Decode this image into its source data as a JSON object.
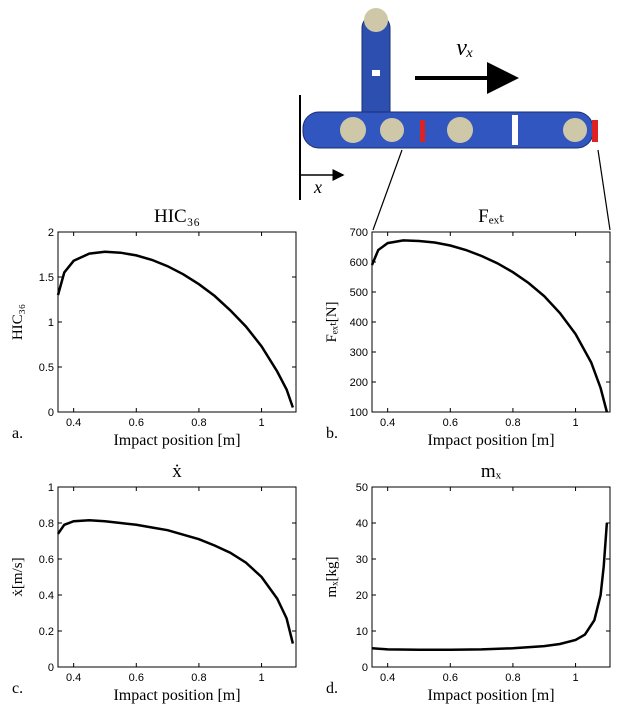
{
  "illustration": {
    "velocity_label": "vₓ",
    "axis_label": "x"
  },
  "chart_data": [
    {
      "type": "line",
      "panel_label": "a.",
      "title": "HIC₃₆",
      "x_label": "Impact position [m]",
      "y_label": "HIC₃₆",
      "color": "#000000",
      "x": [
        0.35,
        0.37,
        0.4,
        0.45,
        0.5,
        0.55,
        0.6,
        0.65,
        0.7,
        0.75,
        0.8,
        0.85,
        0.9,
        0.95,
        1.0,
        1.05,
        1.08,
        1.1
      ],
      "values": [
        1.3,
        1.55,
        1.68,
        1.76,
        1.78,
        1.77,
        1.74,
        1.69,
        1.62,
        1.53,
        1.42,
        1.29,
        1.13,
        0.95,
        0.73,
        0.45,
        0.25,
        0.05
      ],
      "xlim": [
        0.35,
        1.11
      ],
      "xticks": [
        0.4,
        0.6,
        0.8,
        1
      ],
      "ylim": [
        0,
        2
      ],
      "yticks": [
        0,
        0.5,
        1,
        1.5,
        2
      ]
    },
    {
      "type": "line",
      "panel_label": "b.",
      "title": "Fₑₓₜ",
      "x_label": "Impact position [m]",
      "y_label": "Fₑₓₜ[N]",
      "color": "#000000",
      "x": [
        0.35,
        0.37,
        0.4,
        0.45,
        0.5,
        0.55,
        0.6,
        0.65,
        0.7,
        0.75,
        0.8,
        0.85,
        0.9,
        0.95,
        1.0,
        1.05,
        1.08,
        1.1
      ],
      "values": [
        590,
        640,
        663,
        672,
        670,
        665,
        655,
        640,
        620,
        596,
        566,
        530,
        486,
        430,
        360,
        265,
        180,
        100
      ],
      "xlim": [
        0.35,
        1.11
      ],
      "xticks": [
        0.4,
        0.6,
        0.8,
        1
      ],
      "ylim": [
        100,
        700
      ],
      "yticks": [
        100,
        200,
        300,
        400,
        500,
        600,
        700
      ]
    },
    {
      "type": "line",
      "panel_label": "c.",
      "title": "ẋ",
      "x_label": "Impact position [m]",
      "y_label": "ẋ[m/s]",
      "color": "#000000",
      "x": [
        0.35,
        0.37,
        0.4,
        0.45,
        0.5,
        0.55,
        0.6,
        0.65,
        0.7,
        0.75,
        0.8,
        0.85,
        0.9,
        0.95,
        1.0,
        1.05,
        1.08,
        1.1
      ],
      "values": [
        0.74,
        0.79,
        0.81,
        0.815,
        0.81,
        0.8,
        0.79,
        0.775,
        0.76,
        0.735,
        0.71,
        0.675,
        0.635,
        0.58,
        0.5,
        0.38,
        0.27,
        0.13
      ],
      "xlim": [
        0.35,
        1.11
      ],
      "xticks": [
        0.4,
        0.6,
        0.8,
        1
      ],
      "ylim": [
        0,
        1
      ],
      "yticks": [
        0,
        0.2,
        0.4,
        0.6,
        0.8,
        1
      ]
    },
    {
      "type": "line",
      "panel_label": "d.",
      "title": "mₓ",
      "x_label": "Impact position [m]",
      "y_label": "mₓ[kg]",
      "color": "#000000",
      "x": [
        0.35,
        0.4,
        0.5,
        0.6,
        0.7,
        0.8,
        0.9,
        0.95,
        1.0,
        1.03,
        1.06,
        1.08,
        1.09,
        1.1
      ],
      "values": [
        5.2,
        4.9,
        4.8,
        4.8,
        4.9,
        5.2,
        5.8,
        6.4,
        7.5,
        9,
        13,
        20,
        28,
        40
      ],
      "xlim": [
        0.35,
        1.11
      ],
      "xticks": [
        0.4,
        0.6,
        0.8,
        1
      ],
      "ylim": [
        0,
        50
      ],
      "yticks": [
        0,
        10,
        20,
        30,
        40,
        50
      ]
    }
  ]
}
